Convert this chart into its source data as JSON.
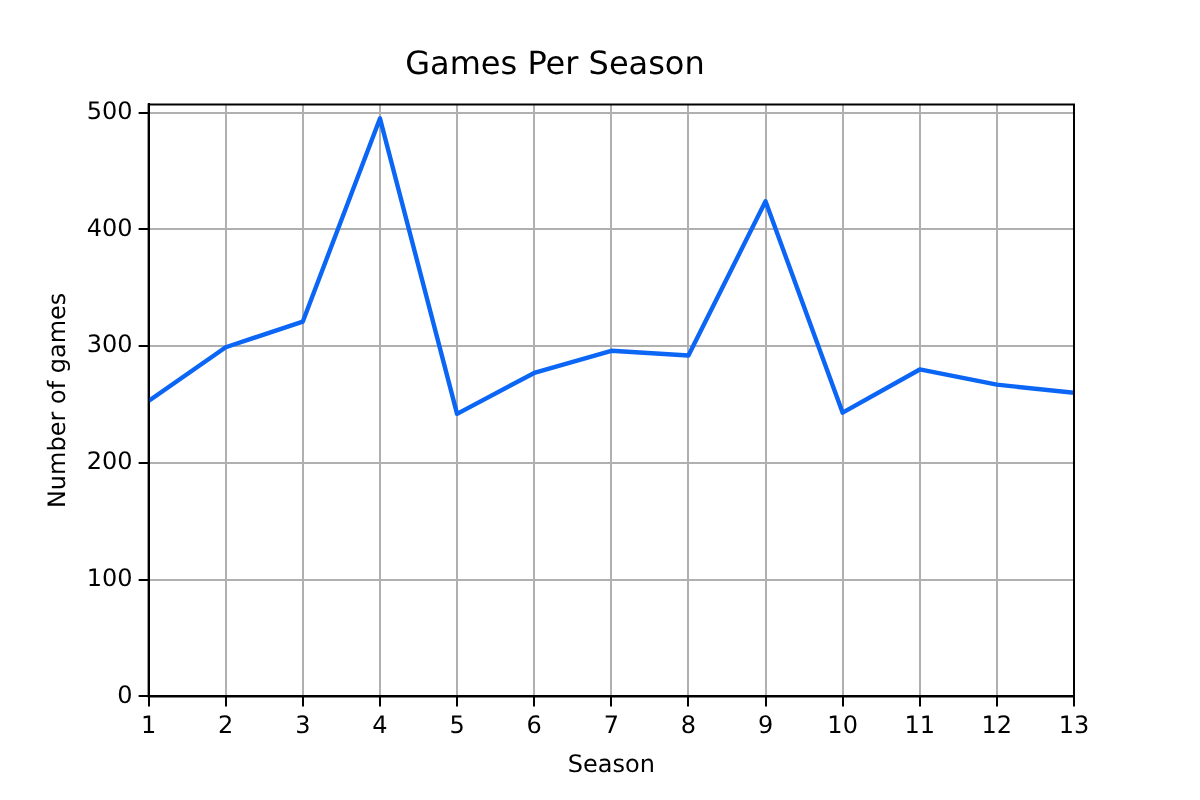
{
  "chart_data": {
    "type": "line",
    "title": "Games Per Season",
    "xlabel": "Season",
    "ylabel": "Number of games",
    "x": [
      1,
      2,
      3,
      4,
      5,
      6,
      7,
      8,
      9,
      10,
      11,
      12,
      13
    ],
    "series": [
      {
        "color": "#0b66f5",
        "values": [
          253,
          299,
          321,
          495,
          242,
          277,
          296,
          292,
          424,
          243,
          280,
          267,
          260
        ]
      }
    ],
    "xlim": [
      1,
      13
    ],
    "xticks": [
      1,
      2,
      3,
      4,
      5,
      6,
      7,
      8,
      9,
      10,
      11,
      12,
      13
    ],
    "ylim": [
      0,
      507
    ],
    "yticks": [
      0,
      100,
      200,
      300,
      400,
      500
    ],
    "grid": true,
    "legend": false
  }
}
